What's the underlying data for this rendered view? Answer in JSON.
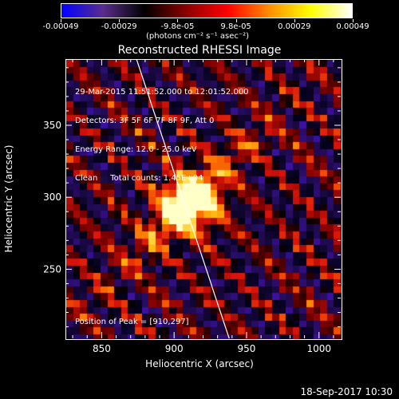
{
  "colorbar": {
    "ticks": [
      "-0.00049",
      "-0.00029",
      "-9.8e-05",
      "9.8e-05",
      "0.00029",
      "0.00049"
    ],
    "units": "(photons cm⁻² s⁻¹ asec⁻²)",
    "colors": [
      "#0000ff",
      "#5a2d8c",
      "#000000",
      "#8b0000",
      "#ff0000",
      "#ff8c00",
      "#ffff00",
      "#ffffff"
    ]
  },
  "chart_data": {
    "type": "heatmap",
    "title": "Reconstructed RHESSI Image",
    "xlabel": "Heliocentric X (arcsec)",
    "ylabel": "Heliocentric Y (arcsec)",
    "xlim": [
      825,
      1015
    ],
    "ylim": [
      202,
      396
    ],
    "xticks": [
      850,
      900,
      950,
      1000
    ],
    "yticks": [
      250,
      300,
      350
    ],
    "peak": [
      910,
      297
    ],
    "info_lines": [
      "29-Mar-2015 11:51:52.000 to 12:01:52.000",
      "Detectors: 3F 5F 6F 7F 8F 9F, Att 0",
      "Energy Range: 12.0 - 25.0 keV",
      "Clean     Total counts: 1.45E+04"
    ],
    "peak_label": "Position of Peak = [910,297]"
  },
  "footer": {
    "timestamp": "18-Sep-2017 10:30"
  }
}
